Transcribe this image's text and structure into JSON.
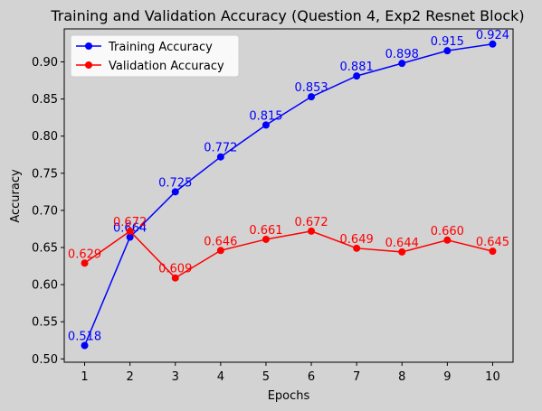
{
  "chart_data": {
    "type": "line",
    "title": "Training and Validation Accuracy (Question 4, Exp2 Resnet Block)",
    "xlabel": "Epochs",
    "ylabel": "Accuracy",
    "x": [
      1,
      2,
      3,
      4,
      5,
      6,
      7,
      8,
      9,
      10
    ],
    "xlim": [
      0.55,
      10.45
    ],
    "ylim": [
      0.4955,
      0.9444
    ],
    "yticks": [
      0.5,
      0.55,
      0.6,
      0.65,
      0.7,
      0.75,
      0.8,
      0.85,
      0.9
    ],
    "yticklabels": [
      "0.50",
      "0.55",
      "0.60",
      "0.65",
      "0.70",
      "0.75",
      "0.80",
      "0.85",
      "0.90"
    ],
    "grid": false,
    "legend_position": "top-left",
    "background": "#d3d3d3",
    "series": [
      {
        "name": "Training Accuracy",
        "color": "#0000ff",
        "values": [
          0.518,
          0.664,
          0.725,
          0.772,
          0.815,
          0.853,
          0.881,
          0.898,
          0.915,
          0.924
        ],
        "labels": [
          "0.518",
          "0.664",
          "0.725",
          "0.772",
          "0.815",
          "0.853",
          "0.881",
          "0.898",
          "0.915",
          "0.924"
        ]
      },
      {
        "name": "Validation Accuracy",
        "color": "#ff0000",
        "values": [
          0.629,
          0.672,
          0.609,
          0.646,
          0.661,
          0.672,
          0.649,
          0.644,
          0.66,
          0.645
        ],
        "labels": [
          "0.629",
          "0.672",
          "0.609",
          "0.646",
          "0.661",
          "0.672",
          "0.649",
          "0.644",
          "0.660",
          "0.645"
        ]
      }
    ]
  }
}
